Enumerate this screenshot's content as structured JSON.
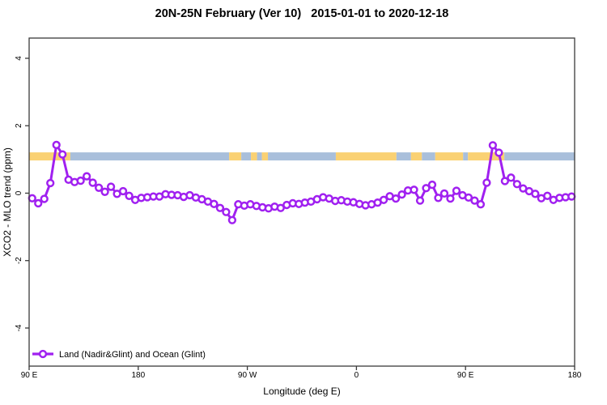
{
  "chart_data": {
    "type": "line",
    "title": "20N-25N February (Ver 10)   2015-01-01 to 2020-12-18",
    "xlabel": "Longitude (deg E)",
    "ylabel": "XCO2 - MLO trend (ppm)",
    "xlim": [
      90,
      540
    ],
    "ylim": [
      -5.13,
      4.6
    ],
    "grid": false,
    "x_ticks": [
      {
        "value": 90,
        "label": "90 E"
      },
      {
        "value": 180,
        "label": "180"
      },
      {
        "value": 270,
        "label": "90 W"
      },
      {
        "value": 360,
        "label": "0"
      },
      {
        "value": 450,
        "label": "90 E"
      },
      {
        "value": 540,
        "label": "180"
      }
    ],
    "y_ticks": [
      {
        "value": -4,
        "label": "-4"
      },
      {
        "value": -2,
        "label": "-2"
      },
      {
        "value": 0,
        "label": "0"
      },
      {
        "value": 2,
        "label": "2"
      },
      {
        "value": 4,
        "label": "4"
      }
    ],
    "colors": {
      "series": "#A020F0",
      "band_land": "#FAD173",
      "band_ocean": "#A9BFDB",
      "axis": "#3a3a3a",
      "text": "#000000"
    },
    "band": {
      "description": "land/ocean strip along longitude",
      "y0": 0.97,
      "y1": 1.21,
      "segments": [
        {
          "x0": 90,
          "x1": 124,
          "type": "land"
        },
        {
          "x0": 124,
          "x1": 255,
          "type": "ocean"
        },
        {
          "x0": 255,
          "x1": 265,
          "type": "land"
        },
        {
          "x0": 265,
          "x1": 273,
          "type": "ocean"
        },
        {
          "x0": 273,
          "x1": 278,
          "type": "land"
        },
        {
          "x0": 278,
          "x1": 282,
          "type": "ocean"
        },
        {
          "x0": 282,
          "x1": 287,
          "type": "land"
        },
        {
          "x0": 287,
          "x1": 343,
          "type": "ocean"
        },
        {
          "x0": 343,
          "x1": 393,
          "type": "land"
        },
        {
          "x0": 393,
          "x1": 405,
          "type": "ocean"
        },
        {
          "x0": 405,
          "x1": 414,
          "type": "land"
        },
        {
          "x0": 414,
          "x1": 425,
          "type": "ocean"
        },
        {
          "x0": 425,
          "x1": 448,
          "type": "land"
        },
        {
          "x0": 448,
          "x1": 452,
          "type": "ocean"
        },
        {
          "x0": 452,
          "x1": 482,
          "type": "land"
        },
        {
          "x0": 482,
          "x1": 540,
          "type": "ocean"
        }
      ]
    },
    "legend": {
      "position": "bottom-left",
      "entries": [
        {
          "label": "Land (Nadir&Glint) and Ocean (Glint)",
          "color": "#A020F0",
          "marker": "open-circle"
        }
      ]
    },
    "series": [
      {
        "name": "Land (Nadir&Glint) and Ocean (Glint)",
        "marker": "open-circle",
        "x": [
          92.5,
          97.5,
          102.5,
          107.5,
          112.5,
          117.5,
          122.5,
          127.5,
          132.5,
          137.5,
          142.5,
          147.5,
          152.5,
          157.5,
          162.5,
          167.5,
          172.5,
          177.5,
          182.5,
          187.5,
          192.5,
          197.5,
          202.5,
          207.5,
          212.5,
          217.5,
          222.5,
          227.5,
          232.5,
          237.5,
          242.5,
          247.5,
          252.5,
          257.5,
          262.5,
          267.5,
          272.5,
          277.5,
          282.5,
          287.5,
          292.5,
          297.5,
          302.5,
          307.5,
          312.5,
          317.5,
          322.5,
          327.5,
          332.5,
          337.5,
          342.5,
          347.5,
          352.5,
          357.5,
          362.5,
          367.5,
          372.5,
          377.5,
          382.5,
          387.5,
          392.5,
          397.5,
          402.5,
          407.5,
          412.5,
          417.5,
          422.5,
          427.5,
          432.5,
          437.5,
          442.5,
          447.5,
          452.5,
          457.5,
          462.5,
          467.5,
          472.5,
          477.5,
          482.5,
          487.5,
          492.5,
          497.5,
          502.5,
          507.5,
          512.5,
          517.5,
          522.5,
          527.5,
          532.5,
          537.5
        ],
        "y": [
          -0.15,
          -0.3,
          -0.17,
          0.3,
          1.43,
          1.15,
          0.4,
          0.33,
          0.37,
          0.5,
          0.31,
          0.16,
          0.04,
          0.19,
          -0.02,
          0.06,
          -0.08,
          -0.2,
          -0.14,
          -0.12,
          -0.1,
          -0.1,
          -0.03,
          -0.05,
          -0.06,
          -0.11,
          -0.06,
          -0.13,
          -0.18,
          -0.25,
          -0.32,
          -0.44,
          -0.56,
          -0.8,
          -0.33,
          -0.37,
          -0.33,
          -0.38,
          -0.42,
          -0.45,
          -0.4,
          -0.44,
          -0.35,
          -0.3,
          -0.32,
          -0.28,
          -0.25,
          -0.18,
          -0.12,
          -0.16,
          -0.23,
          -0.21,
          -0.25,
          -0.27,
          -0.32,
          -0.36,
          -0.33,
          -0.28,
          -0.2,
          -0.09,
          -0.16,
          -0.04,
          0.08,
          0.1,
          -0.22,
          0.15,
          0.25,
          -0.14,
          -0.01,
          -0.16,
          0.07,
          -0.06,
          -0.13,
          -0.22,
          -0.33,
          0.31,
          1.42,
          1.2,
          0.36,
          0.46,
          0.27,
          0.14,
          0.06,
          -0.02,
          -0.15,
          -0.08,
          -0.2,
          -0.14,
          -0.12,
          -0.1
        ]
      }
    ]
  }
}
